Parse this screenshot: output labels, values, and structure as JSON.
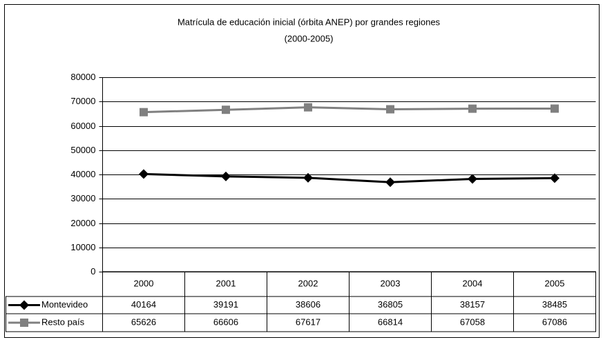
{
  "chart_data": {
    "type": "line",
    "title": "Matrícula de educación inicial (órbita ANEP) por grandes regiones",
    "subtitle": "(2000-2005)",
    "categories": [
      "2000",
      "2001",
      "2002",
      "2003",
      "2004",
      "2005"
    ],
    "series": [
      {
        "name": "Montevideo",
        "color": "#000000",
        "marker": "diamond",
        "values": [
          40164,
          39191,
          38606,
          36805,
          38157,
          38485
        ]
      },
      {
        "name": "Resto país",
        "color": "#808080",
        "marker": "square",
        "values": [
          65626,
          66606,
          67617,
          66814,
          67058,
          67086
        ]
      }
    ],
    "ylim": [
      0,
      80000
    ],
    "yticks": [
      0,
      10000,
      20000,
      30000,
      40000,
      50000,
      60000,
      70000,
      80000
    ],
    "grid": true
  }
}
